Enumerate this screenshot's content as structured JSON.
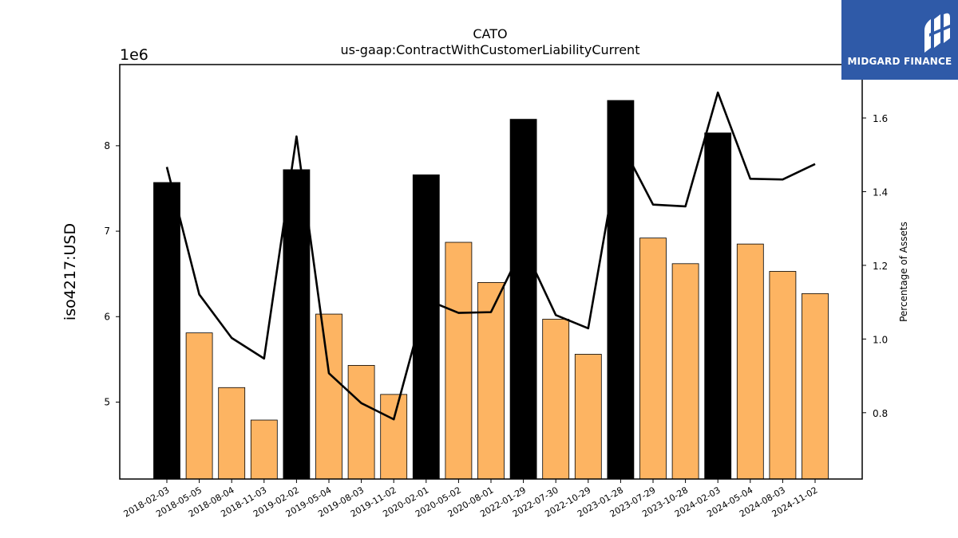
{
  "logo": {
    "text": "MIDGARD FINANCE",
    "bg": "#2f5aa8",
    "mark": "mf-monogram-icon"
  },
  "chart_data": {
    "type": "bar",
    "title": "CATO",
    "subtitle": "us-gaap:ContractWithCustomerLiabilityCurrent",
    "ylabel": "iso4217:USD",
    "y_multiplier": "1e6",
    "y2label": "Percentage of Assets",
    "ylim": [
      4100000,
      8950000
    ],
    "y2lim": [
      0.62,
      1.745
    ],
    "y_ticks": [
      5,
      6,
      7,
      8
    ],
    "y2_ticks": [
      0.8,
      1.0,
      1.2,
      1.4,
      1.6
    ],
    "colors": {
      "highlight": "#000000",
      "normal": "#fdb462",
      "line": "#000000"
    },
    "categories": [
      "2018-02-03",
      "2018-05-05",
      "2018-08-04",
      "2018-11-03",
      "2019-02-02",
      "2019-05-04",
      "2019-08-03",
      "2019-11-02",
      "2020-02-01",
      "2020-05-02",
      "2020-08-01",
      "2022-01-29",
      "2022-07-30",
      "2022-10-29",
      "2023-01-28",
      "2023-07-29",
      "2023-10-28",
      "2024-02-03",
      "2024-05-04",
      "2024-08-03",
      "2024-11-02"
    ],
    "series": [
      {
        "type": "bar",
        "values": [
          7570000,
          5810000,
          5170000,
          4790000,
          7720000,
          6030000,
          5430000,
          5090000,
          7660000,
          6870000,
          6400000,
          8310000,
          5970000,
          5560000,
          8530000,
          6920000,
          6620000,
          8150000,
          6850000,
          6530000,
          6270000
        ],
        "highlight": [
          true,
          false,
          false,
          false,
          true,
          false,
          false,
          false,
          true,
          false,
          false,
          true,
          false,
          false,
          true,
          false,
          false,
          true,
          false,
          false,
          false
        ]
      },
      {
        "type": "line",
        "axis": "right",
        "values": [
          1.467,
          1.121,
          1.003,
          0.947,
          1.55,
          0.907,
          0.826,
          0.782,
          1.107,
          1.071,
          1.073,
          1.253,
          1.065,
          1.029,
          1.534,
          1.365,
          1.36,
          1.669,
          1.435,
          1.433,
          1.475
        ]
      }
    ],
    "grid": false,
    "legend": "none"
  }
}
